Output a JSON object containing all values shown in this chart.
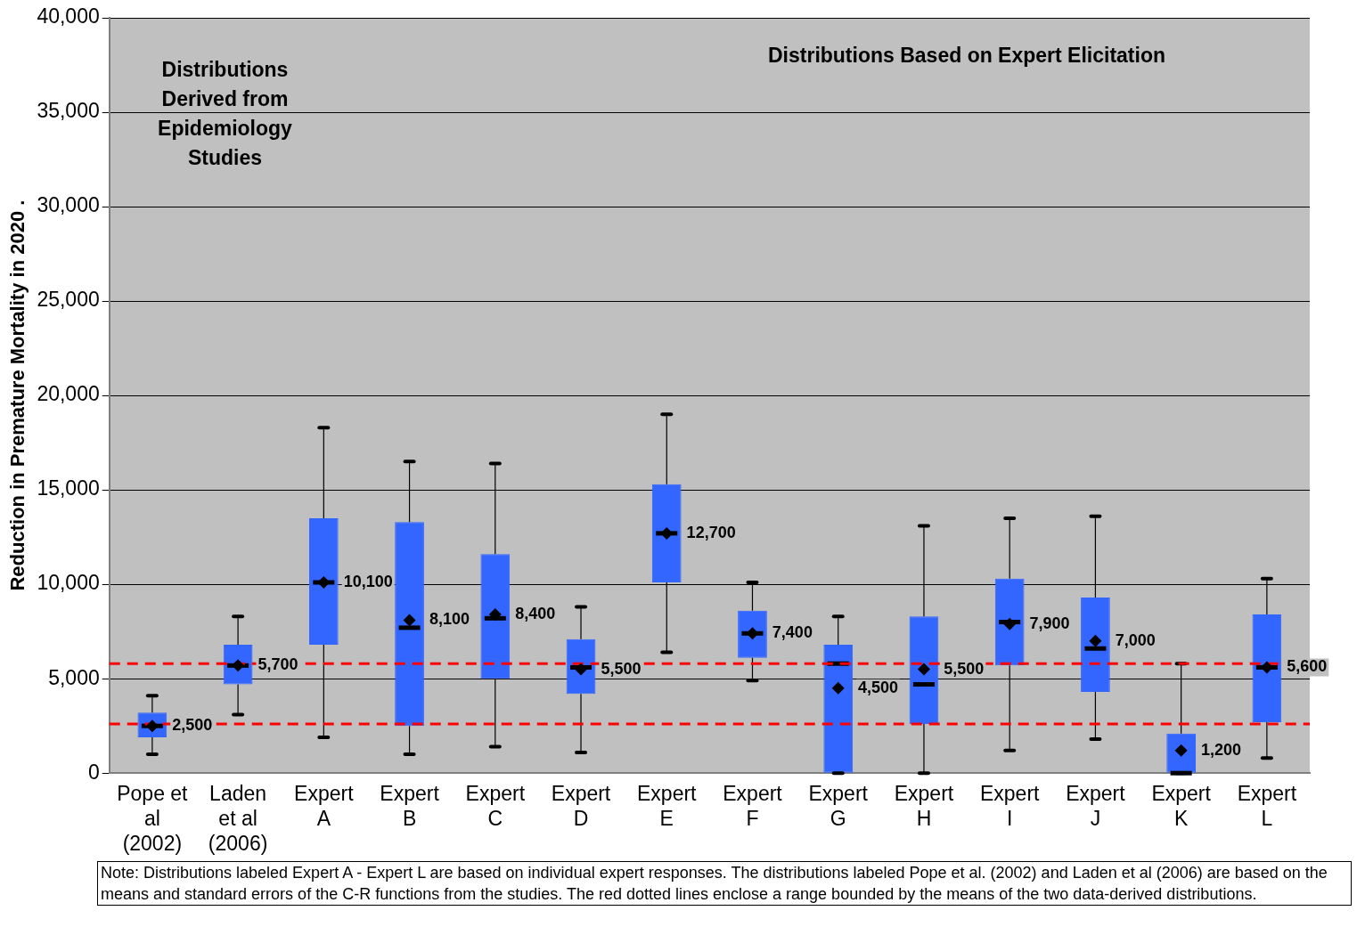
{
  "chart_data": {
    "type": "box",
    "ylabel": "Reduction in Premature Mortality in 2020 .",
    "categories": [
      "Pope et al (2002)",
      "Laden et al (2006)",
      "Expert A",
      "Expert B",
      "Expert C",
      "Expert D",
      "Expert E",
      "Expert F",
      "Expert G",
      "Expert H",
      "Expert I",
      "Expert J",
      "Expert K",
      "Expert L"
    ],
    "boxes": [
      {
        "low": 1000,
        "q1": 1900,
        "median": 2500,
        "q3": 3200,
        "high": 4100
      },
      {
        "low": 3100,
        "q1": 4700,
        "median": 5700,
        "q3": 6800,
        "high": 8300
      },
      {
        "low": 1900,
        "q1": 6800,
        "median": 10100,
        "q3": 13500,
        "high": 18300
      },
      {
        "low": 1000,
        "q1": 2500,
        "median": 7700,
        "q3": 13300,
        "high": 16500
      },
      {
        "low": 1400,
        "q1": 5000,
        "median": 8200,
        "q3": 11600,
        "high": 16400
      },
      {
        "low": 1100,
        "q1": 4200,
        "median": 5600,
        "q3": 7100,
        "high": 8800
      },
      {
        "low": 6400,
        "q1": 10100,
        "median": 12700,
        "q3": 15300,
        "high": 19000
      },
      {
        "low": 4900,
        "q1": 6100,
        "median": 7400,
        "q3": 8600,
        "high": 10100
      },
      {
        "low": 0,
        "q1": 0,
        "median": 5800,
        "q3": 6800,
        "high": 8300
      },
      {
        "low": 0,
        "q1": 2600,
        "median": 4700,
        "q3": 8300,
        "high": 13100
      },
      {
        "low": 1200,
        "q1": 5700,
        "median": 8000,
        "q3": 10300,
        "high": 13500
      },
      {
        "low": 1800,
        "q1": 4300,
        "median": 6600,
        "q3": 9300,
        "high": 13600
      },
      {
        "low": 0,
        "q1": 0,
        "median": 0,
        "q3": 2100,
        "high": 5800
      },
      {
        "low": 800,
        "q1": 2700,
        "median": 5600,
        "q3": 8400,
        "high": 10300
      }
    ],
    "color": "#3366ff",
    "series": [
      {
        "type": "scatter",
        "color": "#000000",
        "marker": "diamond",
        "x": [
          "Pope et al (2002)",
          "Laden et al (2006)",
          "Expert A",
          "Expert B",
          "Expert C",
          "Expert D",
          "Expert E",
          "Expert F",
          "Expert G",
          "Expert H",
          "Expert I",
          "Expert J",
          "Expert K",
          "Expert L"
        ],
        "values": [
          2500,
          5700,
          10100,
          8100,
          8400,
          5500,
          12700,
          7400,
          4500,
          5500,
          7900,
          7000,
          1200,
          5600
        ],
        "value_labels": [
          "2,500",
          "5,700",
          "10,100",
          "8,100",
          "8,400",
          "5,500",
          "12,700",
          "7,400",
          "4,500",
          "5,500",
          "7,900",
          "7,000",
          "1,200",
          "5,600"
        ]
      }
    ],
    "ylim": [
      0,
      40000
    ],
    "yticks": [
      {
        "value": 0,
        "label": "0"
      },
      {
        "value": 5000,
        "label": "5,000"
      },
      {
        "value": 10000,
        "label": "10,000"
      },
      {
        "value": 15000,
        "label": "15,000"
      },
      {
        "value": 20000,
        "label": "20,000"
      },
      {
        "value": 25000,
        "label": "25,000"
      },
      {
        "value": 30000,
        "label": "30,000"
      },
      {
        "value": 35000,
        "label": "35,000"
      },
      {
        "value": 40000,
        "label": "40,000"
      }
    ],
    "grid": "y",
    "ref_lines": [
      {
        "axis": "y",
        "value": 2600,
        "color": "#ff0000",
        "line_style": "dashed"
      },
      {
        "axis": "y",
        "value": 5800,
        "color": "#ff0000",
        "line_style": "dashed"
      }
    ],
    "annotations": [
      "Distributions Derived from Epidemiology Studies",
      "Distributions Based on Expert Elicitation",
      "Note:  Distributions labeled Expert A - Expert L are based on individual expert responses.  The distributions labeled Pope et al. (2002) and Laden et al (2006) are based on the means and standard errors of the C-R functions from the studies.  The red dotted lines enclose a range bounded by the means of the two data-derived distributions."
    ]
  }
}
